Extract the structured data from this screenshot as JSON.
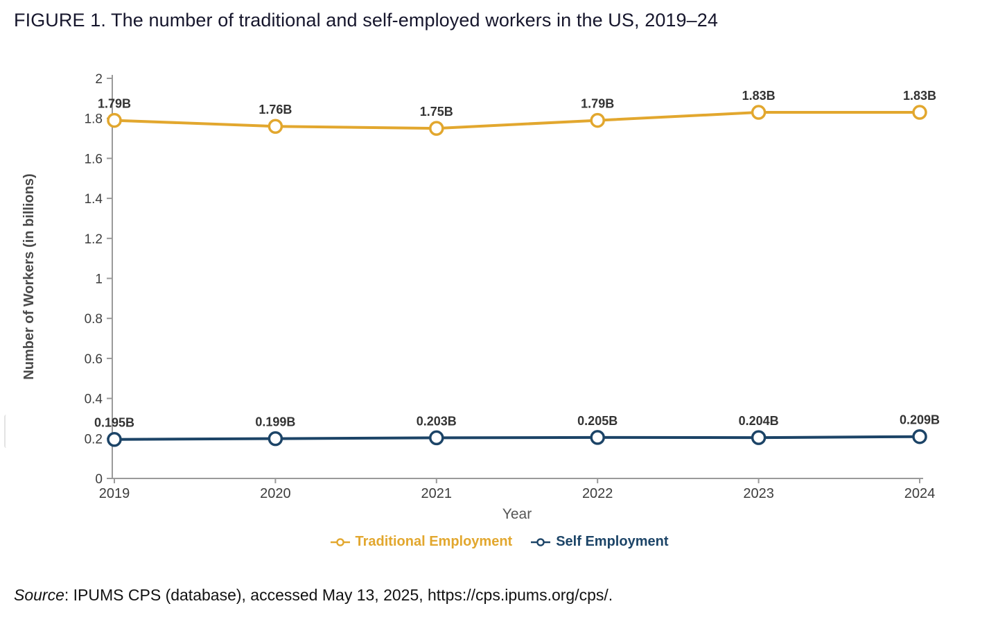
{
  "page": {
    "background": "#ffffff"
  },
  "chart_data": {
    "type": "line",
    "title": "FIGURE 1. The number of traditional and self-employed workers in the US, 2019–24",
    "xlabel": "Year",
    "ylabel": "Number of Workers (in billions)",
    "x": [
      2019,
      2020,
      2021,
      2022,
      2023,
      2024
    ],
    "x_tick_labels": [
      "2019",
      "2020",
      "2021",
      "2022",
      "2023",
      "2024"
    ],
    "ylim": [
      0,
      2
    ],
    "yticks": [
      0,
      0.2,
      0.4,
      0.6,
      0.8,
      1,
      1.2,
      1.4,
      1.6,
      1.8,
      2
    ],
    "ytick_labels": [
      "0",
      "0.2",
      "0.4",
      "0.6",
      "0.8",
      "1",
      "1.2",
      "1.4",
      "1.6",
      "1.8",
      "2"
    ],
    "grid": false,
    "legend_position": "bottom",
    "series": [
      {
        "name": "Traditional Employment",
        "color": "#E2A72E",
        "values": [
          1.79,
          1.76,
          1.75,
          1.79,
          1.83,
          1.83
        ],
        "point_labels": [
          "1.79B",
          "1.76B",
          "1.75B",
          "1.79B",
          "1.83B",
          "1.83B"
        ]
      },
      {
        "name": "Self Employment",
        "color": "#1C4467",
        "values": [
          0.195,
          0.199,
          0.203,
          0.205,
          0.204,
          0.209
        ],
        "point_labels": [
          "0.195B",
          "0.199B",
          "0.203B",
          "0.205B",
          "0.204B",
          "0.209B"
        ]
      }
    ],
    "style": {
      "axis_color": "#9a9a9a",
      "tick_label_color": "#3c3c3c",
      "data_label_color": "#333333",
      "axis_title_color": "#555555",
      "point_fill": "#ffffff"
    }
  },
  "source": {
    "prefix": "Source",
    "text": ": IPUMS CPS (database), accessed May 13, 2025, https://cps.ipums.org/cps/."
  }
}
